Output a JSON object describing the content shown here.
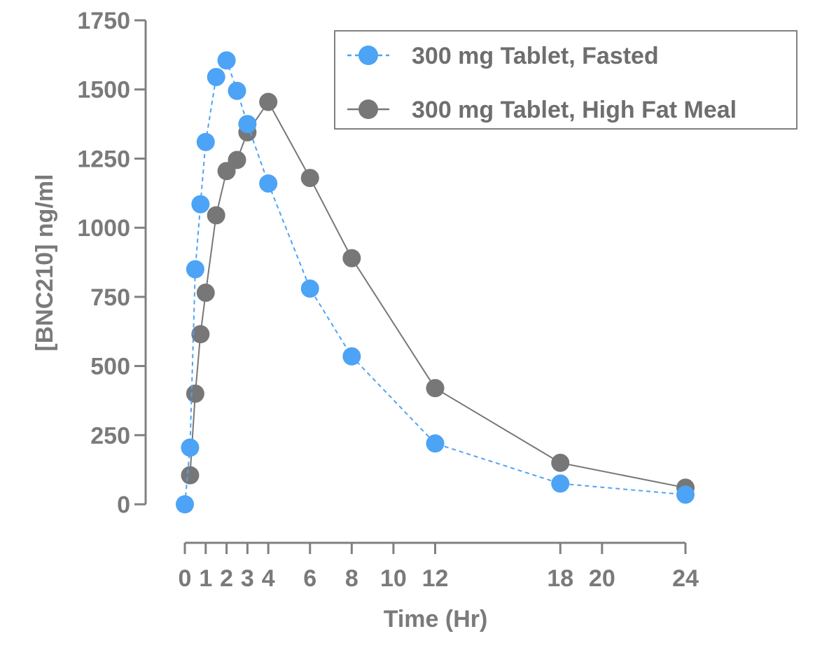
{
  "chart_data": {
    "type": "line",
    "title": "",
    "xlabel": "Time (Hr)",
    "ylabel": "[BNC210] ng/ml",
    "xlim": [
      0,
      24
    ],
    "ylim": [
      0,
      1750
    ],
    "x_ticks": [
      0,
      1,
      2,
      3,
      4,
      6,
      8,
      10,
      12,
      18,
      20,
      24
    ],
    "x_tick_labels": [
      "0",
      "1",
      "2",
      "3",
      "4",
      "6",
      "8",
      "10",
      "12",
      "18",
      "20",
      "24"
    ],
    "y_ticks": [
      0,
      250,
      500,
      750,
      1000,
      1250,
      1500,
      1750
    ],
    "y_tick_labels": [
      "0",
      "250",
      "500",
      "750",
      "1000",
      "1250",
      "1500",
      "1750"
    ],
    "grid": false,
    "legend_position": "top-right",
    "series": [
      {
        "name": "300 mg Tablet, Fasted",
        "color": "#4da3f5",
        "line_style": "dashed",
        "x": [
          0,
          0.25,
          0.5,
          0.75,
          1,
          1.5,
          2,
          2.5,
          3,
          4,
          6,
          8,
          12,
          18,
          24
        ],
        "values": [
          0,
          205,
          850,
          1085,
          1310,
          1545,
          1605,
          1495,
          1375,
          1160,
          780,
          535,
          220,
          75,
          35
        ]
      },
      {
        "name": "300 mg Tablet, High Fat Meal",
        "color": "#777777",
        "line_style": "solid",
        "x": [
          0.25,
          0.5,
          0.75,
          1,
          1.5,
          2,
          2.5,
          3,
          4,
          6,
          8,
          12,
          18,
          24
        ],
        "values": [
          105,
          400,
          615,
          765,
          1045,
          1205,
          1245,
          1345,
          1455,
          1180,
          890,
          420,
          150,
          60
        ]
      }
    ]
  }
}
